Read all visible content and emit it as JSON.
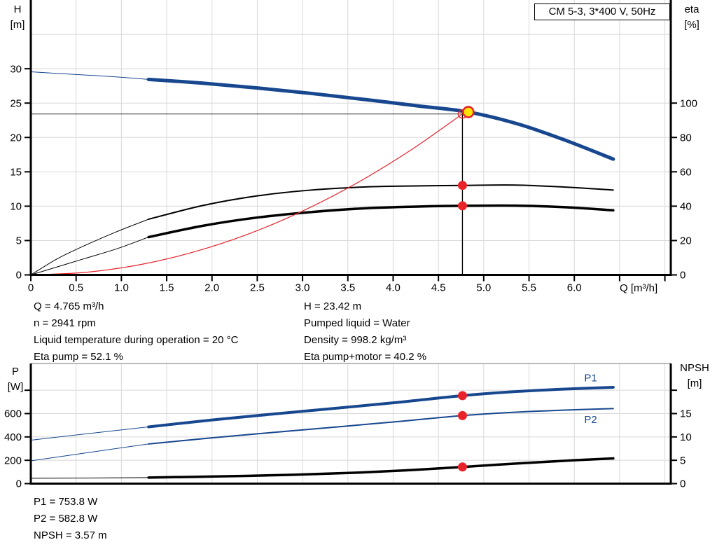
{
  "window_title": "CM 5-3, 3*400 V, 50Hz",
  "colors": {
    "curve_blue": "#17478e",
    "curve_black": "#000000",
    "system_red": "#e8232a",
    "marker_red": "#e8232a",
    "duty_yellow": "#ffe400",
    "grid": "#d8d8d8",
    "ref_line": "#333333"
  },
  "results_top": {
    "left": [
      "Q = 4.765 m³/h",
      "n = 2941 rpm",
      "Liquid temperature during operation = 20 °C",
      "Eta pump = 52.1 %"
    ],
    "right": [
      "H = 23.42 m",
      "Pumped liquid = Water",
      "Density = 998.2 kg/m³",
      "Eta pump+motor = 40.2 %"
    ]
  },
  "results_bottom": [
    "P1 = 753.8 W",
    "P2 = 582.8 W",
    "NPSH = 3.57 m"
  ],
  "chart_data": [
    {
      "type": "line",
      "title": "CM 5-3, 3*400 V, 50Hz",
      "x_axis": {
        "label": "Q [m³/h]",
        "min": 0,
        "max": 7.065,
        "grid_step": 0.5,
        "ticks": [
          {
            "v": 0,
            "label": "0"
          },
          {
            "v": 0.5,
            "label": "0.5"
          },
          {
            "v": 1,
            "label": "1.0"
          },
          {
            "v": 1.5,
            "label": "1.5"
          },
          {
            "v": 2,
            "label": "2.0"
          },
          {
            "v": 2.5,
            "label": "2.5"
          },
          {
            "v": 3,
            "label": "3.0"
          },
          {
            "v": 3.5,
            "label": "3.5"
          },
          {
            "v": 4,
            "label": "4.0"
          },
          {
            "v": 4.5,
            "label": "4.5"
          },
          {
            "v": 5,
            "label": "5.0"
          },
          {
            "v": 5.5,
            "label": "5.5"
          },
          {
            "v": 6,
            "label": "6.0"
          },
          {
            "v": 6.5,
            "label": ""
          },
          {
            "v": 7,
            "label": ""
          }
        ]
      },
      "y_left": {
        "name": "H",
        "unit": "[m]",
        "min": 0,
        "max": 40,
        "grid_from": 5,
        "grid_to": 35,
        "grid_step": 5,
        "ticks": [
          {
            "v": 0,
            "label": "0"
          },
          {
            "v": 5,
            "label": "5"
          },
          {
            "v": 10,
            "label": "10"
          },
          {
            "v": 15,
            "label": "15"
          },
          {
            "v": 20,
            "label": "20"
          },
          {
            "v": 25,
            "label": "25"
          },
          {
            "v": 30,
            "label": "30"
          }
        ]
      },
      "y_right": {
        "name": "eta",
        "unit": "[%]",
        "min": 0,
        "max": 160,
        "ticks": [
          {
            "v": 0,
            "label": "0"
          },
          {
            "v": 20,
            "label": "20"
          },
          {
            "v": 40,
            "label": "40"
          },
          {
            "v": 60,
            "label": "60"
          },
          {
            "v": 80,
            "label": "80"
          },
          {
            "v": 100,
            "label": "100"
          }
        ]
      },
      "series": [
        {
          "name": "pump-curve-H",
          "axis": "left",
          "color": "#17478e",
          "width": 5,
          "thin_until": 1.3,
          "points": [
            [
              0,
              29.55
            ],
            [
              0.45,
              29.2
            ],
            [
              0.9,
              28.85
            ],
            [
              1.3,
              28.45
            ],
            [
              1.9,
              27.9
            ],
            [
              2.5,
              27.2
            ],
            [
              3.1,
              26.4
            ],
            [
              3.7,
              25.5
            ],
            [
              4.3,
              24.55
            ],
            [
              4.83,
              23.7
            ],
            [
              5.38,
              21.95
            ],
            [
              5.9,
              19.6
            ],
            [
              6.43,
              16.85
            ]
          ]
        },
        {
          "name": "eta-pump",
          "axis": "right",
          "color": "#000000",
          "width": 2,
          "thin_until": 1.3,
          "points": [
            [
              0,
              0
            ],
            [
              0.3,
              9.6
            ],
            [
              0.6,
              17.2
            ],
            [
              0.95,
              25.2
            ],
            [
              1.3,
              32.4
            ],
            [
              1.9,
              40.4
            ],
            [
              2.5,
              46.0
            ],
            [
              3.1,
              49.4
            ],
            [
              3.7,
              51.2
            ],
            [
              4.3,
              51.8
            ],
            [
              4.765,
              52.1
            ],
            [
              5.35,
              52.3
            ],
            [
              5.9,
              51.1
            ],
            [
              6.43,
              49.4
            ]
          ]
        },
        {
          "name": "eta-pump-motor",
          "axis": "right",
          "color": "#000000",
          "width": 3.5,
          "thin_until": 1.3,
          "points": [
            [
              0,
              0
            ],
            [
              0.3,
              4.8
            ],
            [
              0.6,
              9.6
            ],
            [
              0.95,
              15.2
            ],
            [
              1.3,
              22.0
            ],
            [
              1.9,
              28.6
            ],
            [
              2.5,
              33.4
            ],
            [
              3.1,
              36.6
            ],
            [
              3.7,
              38.8
            ],
            [
              4.3,
              39.8
            ],
            [
              4.765,
              40.2
            ],
            [
              5.35,
              40.3
            ],
            [
              5.9,
              39.4
            ],
            [
              6.43,
              37.6
            ]
          ]
        },
        {
          "name": "system-curve",
          "axis": "left",
          "color": "#e8232a",
          "width": 1.2,
          "points": [
            [
              0,
              0
            ],
            [
              0.6,
              0.37
            ],
            [
              1.2,
              1.48
            ],
            [
              1.8,
              3.34
            ],
            [
              2.4,
              5.94
            ],
            [
              3.0,
              9.29
            ],
            [
              3.6,
              13.37
            ],
            [
              4.2,
              18.2
            ],
            [
              4.765,
              23.42
            ]
          ]
        }
      ],
      "ref_lines": [
        {
          "name": "h-ref-line",
          "type": "h",
          "axis": "left",
          "v": 23.42,
          "q_from": 0,
          "q_to": 4.765,
          "color": "#333333",
          "width": 1
        },
        {
          "name": "q-ref-line",
          "type": "v",
          "axis": "left",
          "q": 4.765,
          "v_from": 0,
          "v_to": 23.8,
          "color": "#000000",
          "width": 1.3
        }
      ],
      "markers": [
        {
          "type": "circle-open",
          "name": "requested-duty-point",
          "axis": "left",
          "q": 4.765,
          "v": 23.42,
          "r": 6,
          "stroke": "#e8232a",
          "stroke_width": 1.4
        },
        {
          "type": "dot-ring",
          "name": "operating-point",
          "axis": "left",
          "q": 4.83,
          "v": 23.7,
          "r": 7.5,
          "fill": "#ffe400",
          "stroke": "#e8232a",
          "stroke_width": 2.6,
          "interactable": true
        },
        {
          "type": "dot",
          "name": "eta-pump-point",
          "axis": "right",
          "q": 4.765,
          "v": 52.1,
          "r": 6.5,
          "fill": "#e8232a"
        },
        {
          "type": "dot",
          "name": "eta-pump-motor-point",
          "axis": "right",
          "q": 4.765,
          "v": 40.2,
          "r": 6.5,
          "fill": "#e8232a"
        }
      ]
    },
    {
      "type": "line",
      "x_axis": {
        "label": "",
        "min": 0,
        "max": 7.065,
        "grid_step": 0.5,
        "ticks": []
      },
      "y_left": {
        "name": "P",
        "unit": "[W]",
        "min": 0,
        "max": 1029,
        "grid_from": 200,
        "grid_to": 800,
        "grid_step": 200,
        "ticks": [
          {
            "v": 0,
            "label": "0"
          },
          {
            "v": 200,
            "label": "200"
          },
          {
            "v": 400,
            "label": "400"
          },
          {
            "v": 600,
            "label": "600"
          },
          {
            "v": 800,
            "label": ""
          }
        ]
      },
      "y_right": {
        "name": "NPSH",
        "unit": "[m]",
        "min": 0,
        "max": 25.72,
        "ticks": [
          {
            "v": 0,
            "label": "0"
          },
          {
            "v": 5,
            "label": "5"
          },
          {
            "v": 10,
            "label": "10"
          },
          {
            "v": 15,
            "label": "15"
          },
          {
            "v": 20,
            "label": ""
          }
        ]
      },
      "top_border": true,
      "series": [
        {
          "name": "P1",
          "axis": "left",
          "color": "#17478e",
          "width": 4,
          "thin_until": 1.3,
          "label": "P1",
          "label_at": [
            6.18,
            905
          ],
          "points": [
            [
              0,
              372
            ],
            [
              0.65,
              430
            ],
            [
              1.3,
              486
            ],
            [
              2.0,
              545
            ],
            [
              2.7,
              598
            ],
            [
              3.4,
              648
            ],
            [
              4.1,
              700
            ],
            [
              4.765,
              753.8
            ],
            [
              5.3,
              786
            ],
            [
              5.9,
              810
            ],
            [
              6.43,
              825
            ]
          ]
        },
        {
          "name": "P2",
          "axis": "left",
          "color": "#17478e",
          "width": 2,
          "thin_until": 1.3,
          "label": "P2",
          "label_at": [
            6.18,
            548
          ],
          "points": [
            [
              0,
              195
            ],
            [
              0.65,
              268
            ],
            [
              1.3,
              340
            ],
            [
              2.0,
              392
            ],
            [
              2.7,
              440
            ],
            [
              3.4,
              487
            ],
            [
              4.1,
              535
            ],
            [
              4.765,
              582.8
            ],
            [
              5.3,
              610
            ],
            [
              5.9,
              630
            ],
            [
              6.43,
              643
            ]
          ]
        },
        {
          "name": "NPSH",
          "axis": "right",
          "color": "#000000",
          "width": 3.5,
          "thin_until": 1.3,
          "points": [
            [
              0,
              1.15
            ],
            [
              0.65,
              1.2
            ],
            [
              1.3,
              1.3
            ],
            [
              2.1,
              1.55
            ],
            [
              2.9,
              1.9
            ],
            [
              3.6,
              2.35
            ],
            [
              4.2,
              2.9
            ],
            [
              4.765,
              3.57
            ],
            [
              5.4,
              4.35
            ],
            [
              6.0,
              5.0
            ],
            [
              6.43,
              5.4
            ]
          ]
        }
      ],
      "ref_lines": [],
      "markers": [
        {
          "type": "dot",
          "name": "p1-point",
          "axis": "left",
          "q": 4.765,
          "v": 753.8,
          "r": 6.5,
          "fill": "#e8232a"
        },
        {
          "type": "dot",
          "name": "p2-point",
          "axis": "left",
          "q": 4.765,
          "v": 582.8,
          "r": 6.5,
          "fill": "#e8232a"
        },
        {
          "type": "dot",
          "name": "npsh-point",
          "axis": "right",
          "q": 4.765,
          "v": 3.57,
          "r": 6.5,
          "fill": "#e8232a"
        }
      ]
    }
  ]
}
